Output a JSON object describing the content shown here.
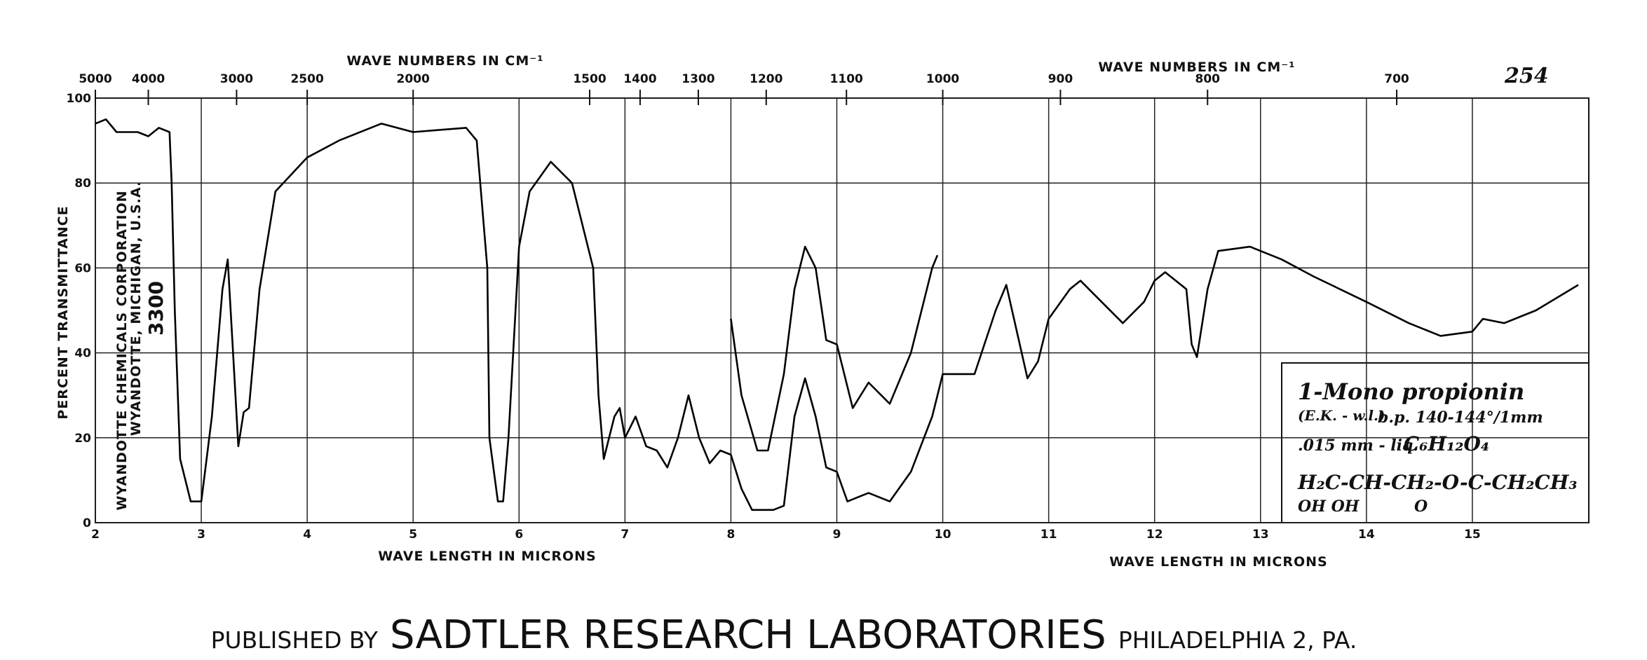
{
  "chart_data": {
    "type": "line",
    "catalog_number": "254",
    "x_label": "WAVE LENGTH IN MICRONS",
    "x_label_right": "WAVE LENGTH IN MICRONS",
    "x2_label": "WAVE NUMBERS IN CM⁻¹",
    "x2_label_right": "WAVE NUMBERS IN CM⁻¹",
    "y_label": "PERCENT TRANSMITTANCE",
    "source_lines": [
      "WYANDOTTE CHEMICALS CORPORATION",
      "WYANDOTTE, MICHIGAN, U.S.A.",
      "3300"
    ],
    "annotations": [
      "1-Mono propionin",
      "(E.K. - w.l.)",
      "b.p. 140-144°/1mm",
      ".015 mm - liq.",
      "C₆H₁₂O₄",
      "H₂C-CH-CH₂-O-C-CH₂CH₃",
      "OH OH",
      "O"
    ],
    "footer": [
      "PUBLISHED BY",
      "SADTLER RESEARCH LABORATORIES",
      "PHILADELPHIA 2, PA."
    ],
    "xlim": [
      2,
      16
    ],
    "xticks": [
      2,
      3,
      4,
      5,
      6,
      7,
      8,
      9,
      10,
      11,
      12,
      13,
      14,
      15
    ],
    "x2ticks": [
      5000,
      4000,
      3000,
      2500,
      2000,
      1500,
      1400,
      1300,
      1200,
      1100,
      1000,
      900,
      800,
      700
    ],
    "ylim": [
      0,
      100
    ],
    "yticks": [
      0,
      20,
      40,
      60,
      80,
      100
    ],
    "grid": true,
    "series": [
      {
        "color": "#000000",
        "x": [
          2.0,
          2.1,
          2.2,
          2.4,
          2.5,
          2.6,
          2.7,
          2.72,
          2.75,
          2.8,
          2.9,
          3.0,
          3.1,
          3.2,
          3.25,
          3.3,
          3.35,
          3.4,
          3.45,
          3.55,
          3.7,
          4.0,
          4.3,
          4.7,
          5.0,
          5.5,
          5.6,
          5.7,
          5.72,
          5.8,
          5.85,
          5.9,
          6.0,
          6.1,
          6.3,
          6.5,
          6.7,
          6.75,
          6.8,
          6.9,
          6.95,
          7.0,
          7.1,
          7.2,
          7.3,
          7.4,
          7.5,
          7.6,
          7.7,
          7.8,
          7.9,
          8.0,
          8.1,
          8.2,
          8.4,
          8.5,
          8.6,
          8.7,
          8.8,
          8.9,
          9.0,
          9.1,
          9.2,
          9.3,
          9.5,
          9.7,
          9.9,
          10.0,
          10.3,
          10.5,
          10.6,
          10.7,
          10.8,
          10.9,
          11.0,
          11.2,
          11.3,
          11.5,
          11.7,
          11.9,
          12.0,
          12.1,
          12.3,
          12.35,
          12.4,
          12.5,
          12.6,
          12.9,
          13.2,
          13.5,
          14.0,
          14.4,
          14.7,
          15.0,
          15.1,
          15.3,
          15.6,
          16.0
        ],
        "values": [
          94,
          95,
          92,
          92,
          91,
          93,
          92,
          80,
          50,
          15,
          5,
          5,
          25,
          55,
          62,
          40,
          18,
          26,
          27,
          55,
          78,
          86,
          90,
          94,
          92,
          93,
          90,
          60,
          20,
          5,
          5,
          20,
          65,
          78,
          85,
          80,
          60,
          30,
          15,
          25,
          27,
          20,
          25,
          18,
          17,
          13,
          20,
          30,
          20,
          14,
          17,
          16,
          8,
          3,
          3,
          4,
          25,
          34,
          25,
          13,
          12,
          5,
          6,
          7,
          5,
          12,
          25,
          35,
          35,
          50,
          56,
          45,
          34,
          38,
          48,
          55,
          57,
          52,
          47,
          52,
          57,
          59,
          55,
          42,
          39,
          55,
          64,
          65,
          62,
          58,
          52,
          47,
          44,
          45,
          48,
          47,
          50,
          56
        ]
      },
      {
        "color": "#000000",
        "x": [
          8.0,
          8.1,
          8.25,
          8.35,
          8.5,
          8.6,
          8.7,
          8.8,
          8.9,
          9.0,
          9.05,
          9.15,
          9.3,
          9.5,
          9.7,
          9.9,
          9.95
        ],
        "values": [
          48,
          30,
          17,
          17,
          35,
          55,
          65,
          60,
          43,
          42,
          37,
          27,
          33,
          28,
          40,
          60,
          63
        ]
      }
    ]
  }
}
